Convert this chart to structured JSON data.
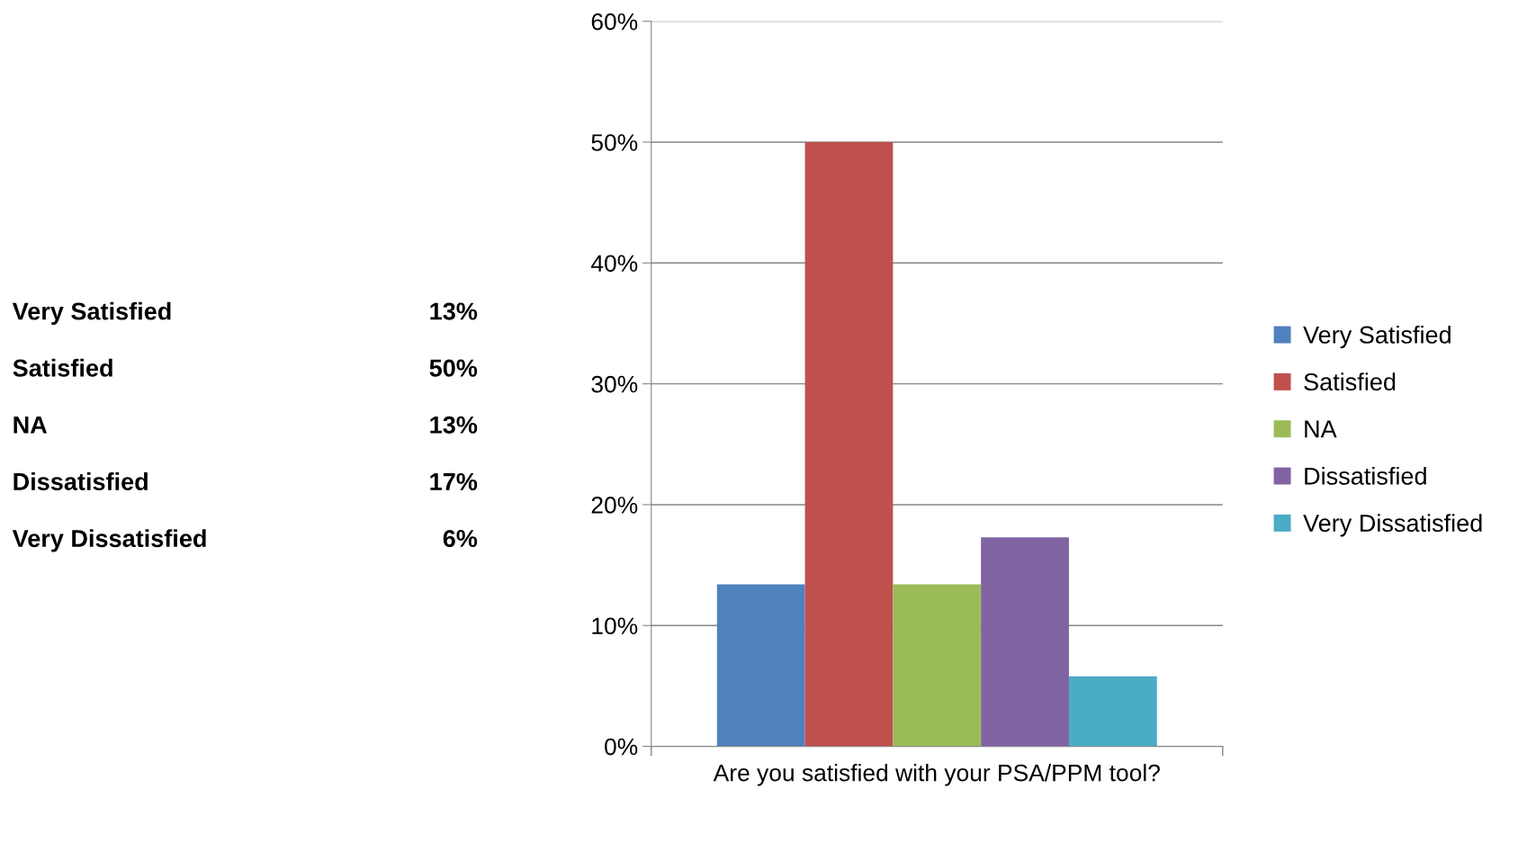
{
  "chart_data": {
    "type": "bar",
    "categories": [
      "Are you satisfied with your PSA/PPM tool?"
    ],
    "series": [
      {
        "name": "Very Satisfied",
        "color": "#4f81bd",
        "values": [
          13.4
        ]
      },
      {
        "name": "Satisfied",
        "color": "#c0504d",
        "values": [
          50
        ]
      },
      {
        "name": "NA",
        "color": "#9bbb59",
        "values": [
          13.4
        ]
      },
      {
        "name": "Dissatisfied",
        "color": "#8064a2",
        "values": [
          17.3
        ]
      },
      {
        "name": "Very Dissatisfied",
        "color": "#4bacc6",
        "values": [
          5.8
        ]
      }
    ],
    "annotations": [
      "13%",
      "50%",
      "13%",
      "17%",
      "6%"
    ],
    "ylim": [
      0,
      60
    ],
    "yticks": [
      {
        "value": 0,
        "label": "0%"
      },
      {
        "value": 10,
        "label": "10%"
      },
      {
        "value": 20,
        "label": "20%"
      },
      {
        "value": 30,
        "label": "30%"
      },
      {
        "value": 40,
        "label": "40%"
      },
      {
        "value": 50,
        "label": "50%"
      },
      {
        "value": 60,
        "label": "60%"
      }
    ],
    "grid": "y",
    "legend": "right"
  }
}
